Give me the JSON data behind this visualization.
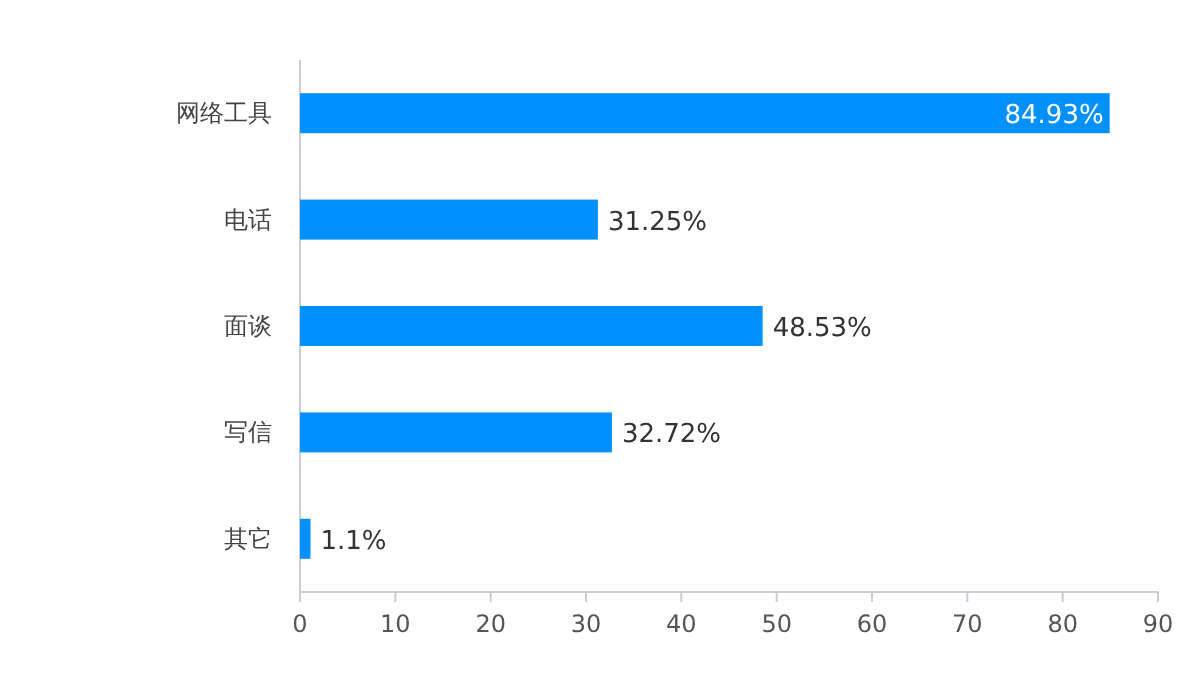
{
  "chart_data": {
    "type": "bar",
    "orientation": "horizontal",
    "categories": [
      "网络工具",
      "电话",
      "面谈",
      "写信",
      "其它"
    ],
    "values": [
      84.93,
      31.25,
      48.53,
      32.72,
      1.1
    ],
    "value_labels": [
      "84.93%",
      "31.25%",
      "48.53%",
      "32.72%",
      "1.1%"
    ],
    "color": "#0091ff",
    "xlim": [
      0,
      90
    ],
    "xticks": [
      0,
      10,
      20,
      30,
      40,
      50,
      60,
      70,
      80,
      90
    ],
    "grid": false
  }
}
